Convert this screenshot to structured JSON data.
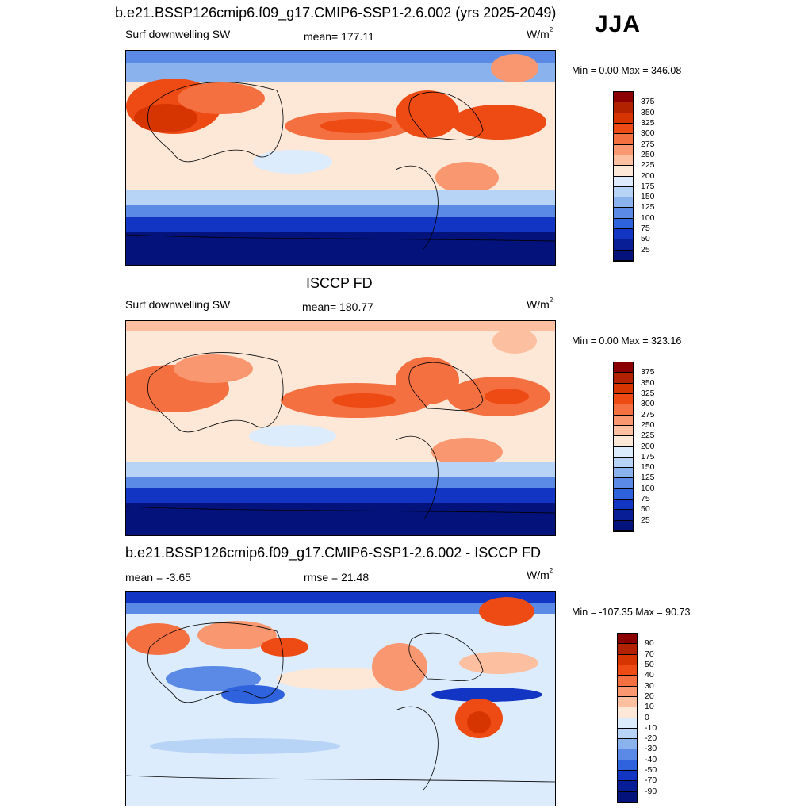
{
  "season": "JJA",
  "panels": [
    {
      "title": "b.e21.BSSP126cmip6.f09_g17.CMIP6-SSP1-2.6.002 (yrs 2025-2049)",
      "left_label": "Surf downwelling SW",
      "center_label": "mean= 177.11",
      "units": "W/m",
      "units_sup": "2",
      "minmax": "Min =   0.00 Max = 346.08",
      "colorbar": {
        "labels": [
          "375",
          "350",
          "325",
          "300",
          "275",
          "250",
          "225",
          "200",
          "175",
          "150",
          "125",
          "100",
          "75",
          "50",
          "25"
        ],
        "colors": [
          "#8b0000",
          "#b22200",
          "#d63400",
          "#ee4a14",
          "#f57040",
          "#f99870",
          "#fcbfa0",
          "#fde8d8",
          "#dcecfc",
          "#b7d3f6",
          "#8ab3ee",
          "#5a8ae6",
          "#2f62dd",
          "#1236c3",
          "#081e96",
          "#03137b"
        ]
      }
    },
    {
      "title": "ISCCP FD",
      "left_label": "Surf downwelling SW",
      "center_label": "mean= 180.77",
      "units": "W/m",
      "units_sup": "2",
      "minmax": "Min =   0.00 Max = 323.16",
      "colorbar": {
        "labels": [
          "375",
          "350",
          "325",
          "300",
          "275",
          "250",
          "225",
          "200",
          "175",
          "150",
          "125",
          "100",
          "75",
          "50",
          "25"
        ],
        "colors": [
          "#8b0000",
          "#b22200",
          "#d63400",
          "#ee4a14",
          "#f57040",
          "#f99870",
          "#fcbfa0",
          "#fde8d8",
          "#dcecfc",
          "#b7d3f6",
          "#8ab3ee",
          "#5a8ae6",
          "#2f62dd",
          "#1236c3",
          "#081e96",
          "#03137b"
        ]
      }
    },
    {
      "title": "b.e21.BSSP126cmip6.f09_g17.CMIP6-SSP1-2.6.002 - ISCCP FD",
      "left_label": "mean =  -3.65",
      "center_label": "rmse =  21.48",
      "units": "W/m",
      "units_sup": "2",
      "minmax": "Min = -107.35 Max =  90.73",
      "colorbar": {
        "labels": [
          "90",
          "70",
          "50",
          "40",
          "30",
          "20",
          "10",
          "0",
          "-10",
          "-20",
          "-30",
          "-40",
          "-50",
          "-70",
          "-90"
        ],
        "colors": [
          "#8b0000",
          "#b22200",
          "#d63400",
          "#ee4a14",
          "#f57040",
          "#f99870",
          "#fcbfa0",
          "#fde8d8",
          "#dcecfc",
          "#b7d3f6",
          "#8ab3ee",
          "#5a8ae6",
          "#2f62dd",
          "#1236c3",
          "#081e96",
          "#03137b"
        ]
      }
    }
  ]
}
